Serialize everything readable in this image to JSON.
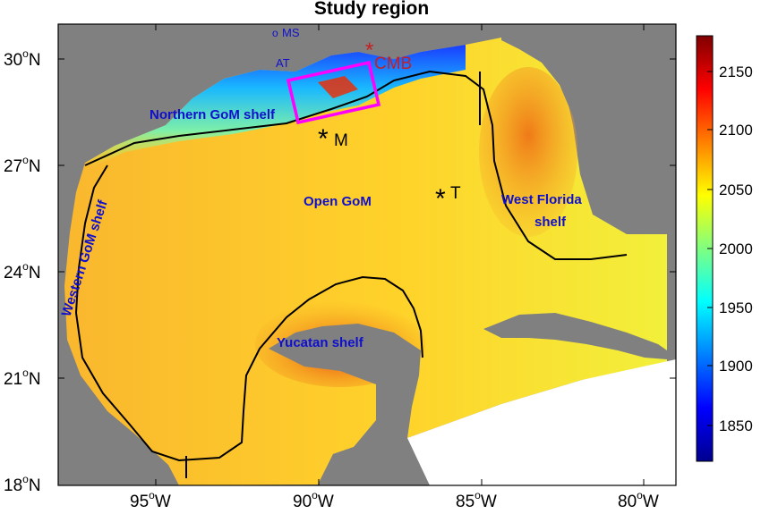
{
  "title": "Study region",
  "axes": {
    "x_ticks": [
      {
        "deg": "95",
        "hem": "W"
      },
      {
        "deg": "90",
        "hem": "W"
      },
      {
        "deg": "85",
        "hem": "W"
      },
      {
        "deg": "80",
        "hem": "W"
      }
    ],
    "y_ticks": [
      {
        "deg": "30",
        "hem": "N"
      },
      {
        "deg": "27",
        "hem": "N"
      },
      {
        "deg": "24",
        "hem": "N"
      },
      {
        "deg": "21",
        "hem": "N"
      },
      {
        "deg": "18",
        "hem": "N"
      }
    ],
    "degree_symbol": "o"
  },
  "regions": {
    "northern_shelf": "Northern GoM shelf",
    "western_shelf": "Western GoM shelf",
    "open_gom": "Open GoM",
    "west_florida_line1": "West Florida",
    "west_florida_line2": "shelf",
    "yucatan_shelf": "Yucatan shelf"
  },
  "stations": {
    "ms": "MS",
    "at": "AT",
    "cmb": "CMB",
    "m": "M",
    "t": "T",
    "marker": "*",
    "circle_marker": "o"
  },
  "colorbar": {
    "ticks": [
      "2150",
      "2100",
      "2050",
      "2000",
      "1950",
      "1900",
      "1850"
    ],
    "colors": [
      "#00008f",
      "#0000ff",
      "#0080ff",
      "#00ffff",
      "#80ff80",
      "#ffff00",
      "#ff8000",
      "#ff0000",
      "#800000"
    ]
  },
  "colors": {
    "land": "#808080",
    "open_water": "#ffcf2e",
    "box": "#ff00ff",
    "label_blue": "#1010cc",
    "label_red": "#c42020"
  }
}
